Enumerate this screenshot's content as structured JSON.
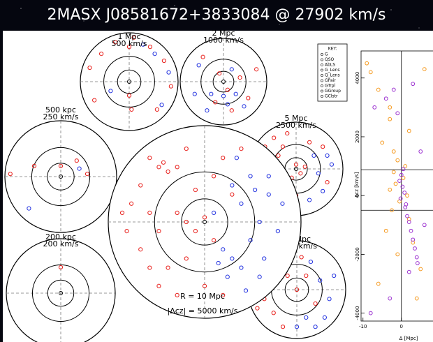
{
  "title": "2MASX J08581672+3833084 @ 27902 km/s",
  "colors": {
    "red": "#e8201c",
    "blue": "#2434e0",
    "orange": "#f59a20",
    "purple": "#9b30d0"
  },
  "panels": [
    {
      "scale": "1 Mpc",
      "velocity": "500 km/s",
      "red": [
        [
          -0.85,
          0.3
        ],
        [
          -0.6,
          0.6
        ],
        [
          -0.3,
          0.85
        ],
        [
          0.1,
          0.95
        ],
        [
          0.45,
          0.75
        ],
        [
          0.75,
          0.45
        ],
        [
          0.6,
          -0.6
        ],
        [
          -0.75,
          -0.4
        ],
        [
          0.05,
          -0.6
        ],
        [
          0.0,
          0.75
        ],
        [
          0.9,
          -0.1
        ],
        [
          0.0,
          -0.3
        ]
      ],
      "blue": [
        [
          0.3,
          0.8
        ],
        [
          0.55,
          0.6
        ],
        [
          0.85,
          0.2
        ],
        [
          0.7,
          -0.5
        ],
        [
          -0.4,
          -0.2
        ]
      ]
    },
    {
      "scale": "2 Mpc",
      "velocity": "1000 km/s",
      "red": [
        [
          -0.5,
          0.6
        ],
        [
          0.4,
          0.1
        ],
        [
          0.1,
          -0.2
        ],
        [
          -0.2,
          -0.5
        ],
        [
          0.6,
          -0.4
        ],
        [
          -0.1,
          0.2
        ],
        [
          0.8,
          0.3
        ],
        [
          0.2,
          -0.7
        ]
      ],
      "blue": [
        [
          -0.7,
          -0.3
        ],
        [
          -0.3,
          -0.3
        ],
        [
          0.0,
          -0.35
        ],
        [
          0.3,
          -0.3
        ],
        [
          0.5,
          -0.6
        ],
        [
          0.2,
          0.3
        ],
        [
          -0.6,
          0.4
        ],
        [
          0.1,
          -0.55
        ],
        [
          -0.4,
          -0.7
        ]
      ]
    },
    {
      "scale": "500 kpc",
      "velocity": "250 km/s",
      "red": [
        [
          -0.5,
          0.2
        ],
        [
          0.3,
          0.3
        ],
        [
          0.5,
          0.05
        ],
        [
          -0.95,
          0.05
        ],
        [
          0.0,
          0.2
        ]
      ],
      "blue": [
        [
          0.35,
          0.15
        ],
        [
          -0.6,
          -0.6
        ]
      ]
    },
    {
      "scale": "5 Mpc",
      "velocity": "2500 km/s",
      "red": [
        [
          -0.7,
          0.5
        ],
        [
          -0.5,
          0.7
        ],
        [
          -0.3,
          0.5
        ],
        [
          -0.8,
          0.1
        ],
        [
          -0.6,
          0.2
        ],
        [
          -0.4,
          0.3
        ],
        [
          0.0,
          0.1
        ],
        [
          0.1,
          -0.1
        ],
        [
          0.2,
          0.05
        ],
        [
          -0.1,
          -0.2
        ],
        [
          -0.5,
          -0.3
        ],
        [
          -0.7,
          -0.5
        ],
        [
          0.3,
          0.6
        ],
        [
          0.6,
          0.5
        ],
        [
          0.7,
          -0.3
        ],
        [
          -0.2,
          0.8
        ],
        [
          0.0,
          -0.6
        ]
      ],
      "blue": [
        [
          0.4,
          0.3
        ],
        [
          0.5,
          -0.1
        ],
        [
          0.6,
          -0.5
        ],
        [
          0.8,
          0.1
        ],
        [
          0.3,
          -0.7
        ],
        [
          -0.2,
          -0.7
        ],
        [
          0.7,
          0.3
        ]
      ]
    },
    {
      "scale": "200 kpc",
      "velocity": "200 km/s",
      "red": [
        [
          0.0,
          0.5
        ]
      ],
      "blue": []
    },
    {
      "scale": "10 Mpc",
      "velocity": "5000 km/s",
      "red": [
        [
          -0.8,
          0.2
        ],
        [
          -0.5,
          0.6
        ],
        [
          -0.3,
          0.75
        ],
        [
          -0.1,
          0.8
        ],
        [
          0.1,
          0.7
        ],
        [
          -0.7,
          -0.2
        ],
        [
          -0.5,
          -0.5
        ],
        [
          -0.3,
          -0.8
        ],
        [
          -0.6,
          0.0
        ],
        [
          0.2,
          0.3
        ],
        [
          -0.2,
          0.3
        ],
        [
          0.0,
          0.0
        ],
        [
          0.4,
          -0.3
        ],
        [
          -0.85,
          -0.4
        ]
      ],
      "blue": [
        [
          0.3,
          0.6
        ],
        [
          0.5,
          0.2
        ],
        [
          0.7,
          -0.2
        ],
        [
          0.2,
          -0.6
        ],
        [
          0.0,
          -0.8
        ],
        [
          0.6,
          -0.6
        ],
        [
          0.4,
          -0.8
        ],
        [
          0.8,
          0.3
        ]
      ]
    }
  ],
  "big": {
    "radius_label": "R = 10 Mpc",
    "velocity_label": "|Δcz| = 5000 km/s",
    "red": [
      [
        -0.6,
        0.7
      ],
      [
        -0.5,
        0.6
      ],
      [
        -0.45,
        0.65
      ],
      [
        -0.4,
        0.55
      ],
      [
        -0.3,
        0.6
      ],
      [
        -0.7,
        0.4
      ],
      [
        -0.8,
        0.2
      ],
      [
        -0.6,
        0.1
      ],
      [
        -0.5,
        -0.1
      ],
      [
        -0.7,
        -0.3
      ],
      [
        -0.85,
        -0.1
      ],
      [
        -0.3,
        0.1
      ],
      [
        -0.2,
        0.0
      ],
      [
        -0.1,
        -0.1
      ],
      [
        0.0,
        0.05
      ],
      [
        0.1,
        -0.2
      ],
      [
        -0.2,
        -0.4
      ],
      [
        -0.4,
        -0.5
      ],
      [
        -0.5,
        -0.7
      ],
      [
        -0.3,
        -0.8
      ],
      [
        0.1,
        0.5
      ],
      [
        0.2,
        0.7
      ],
      [
        0.3,
        0.3
      ],
      [
        0.0,
        -0.7
      ],
      [
        0.2,
        -0.8
      ],
      [
        -0.1,
        0.35
      ],
      [
        -0.9,
        0.1
      ],
      [
        -0.6,
        -0.5
      ],
      [
        0.4,
        0.8
      ],
      [
        -0.2,
        0.8
      ]
    ],
    "blue": [
      [
        0.3,
        0.4
      ],
      [
        0.4,
        0.2
      ],
      [
        0.5,
        0.5
      ],
      [
        0.6,
        0.0
      ],
      [
        0.7,
        0.3
      ],
      [
        0.5,
        -0.2
      ],
      [
        0.3,
        -0.4
      ],
      [
        0.4,
        -0.5
      ],
      [
        0.2,
        -0.3
      ],
      [
        0.6,
        -0.6
      ],
      [
        0.8,
        -0.1
      ],
      [
        0.1,
        0.1
      ],
      [
        0.35,
        0.7
      ],
      [
        0.25,
        -0.6
      ],
      [
        0.7,
        0.5
      ],
      [
        0.45,
        -0.75
      ],
      [
        0.15,
        -0.45
      ],
      [
        0.55,
        0.35
      ],
      [
        0.85,
        0.2
      ],
      [
        0.65,
        -0.4
      ]
    ]
  },
  "key": {
    "title": "KEY:",
    "items": [
      "G",
      "QSO",
      "AbLS",
      "G_Lens",
      "Q_Lens",
      "GPair",
      "GTrpl",
      "GGroup",
      "GClstr"
    ]
  },
  "side": {
    "ylabel": "Δcz [km/s]",
    "xlabel": "Δ [Mpc]",
    "ylim": [
      -4270,
      4920
    ],
    "yticks": [
      4000,
      2000,
      0,
      -2000,
      -4000
    ],
    "xlim": [
      -10.5,
      10
    ],
    "xticks": [
      -10,
      0
    ],
    "bounds": [
      880,
      -500
    ],
    "orange": [
      [
        -9,
        4500
      ],
      [
        -6,
        3600
      ],
      [
        -3,
        2600
      ],
      [
        -5,
        1800
      ],
      [
        -2,
        1500
      ],
      [
        -1,
        1200
      ],
      [
        1,
        1000
      ],
      [
        -2,
        800
      ],
      [
        0.5,
        600
      ],
      [
        -1.5,
        400
      ],
      [
        -3,
        200
      ],
      [
        1.5,
        0
      ],
      [
        -0.5,
        -200
      ],
      [
        -2.5,
        -500
      ],
      [
        2,
        -800
      ],
      [
        -4,
        -1200
      ],
      [
        3,
        -1600
      ],
      [
        -1,
        -2000
      ],
      [
        5,
        -2500
      ],
      [
        -6,
        -3000
      ],
      [
        4,
        -3500
      ],
      [
        -8,
        4200
      ],
      [
        6,
        4300
      ],
      [
        -3,
        3000
      ],
      [
        2,
        2200
      ]
    ],
    "purple": [
      [
        -2,
        3600
      ],
      [
        -4,
        3300
      ],
      [
        -7,
        3000
      ],
      [
        0.5,
        900
      ],
      [
        0,
        700
      ],
      [
        -0.5,
        500
      ],
      [
        0.3,
        300
      ],
      [
        0.8,
        100
      ],
      [
        -0.2,
        -100
      ],
      [
        1,
        -400
      ],
      [
        1.5,
        -700
      ],
      [
        2,
        -900
      ],
      [
        2.5,
        -1200
      ],
      [
        3,
        -1500
      ],
      [
        3.5,
        -1800
      ],
      [
        4,
        -2100
      ],
      [
        4.2,
        -2300
      ],
      [
        2,
        -2600
      ],
      [
        -3,
        -3500
      ],
      [
        -8,
        -4000
      ],
      [
        5,
        1500
      ],
      [
        6,
        -1000
      ],
      [
        -1,
        2800
      ],
      [
        3,
        3800
      ],
      [
        1.2,
        -300
      ]
    ]
  }
}
